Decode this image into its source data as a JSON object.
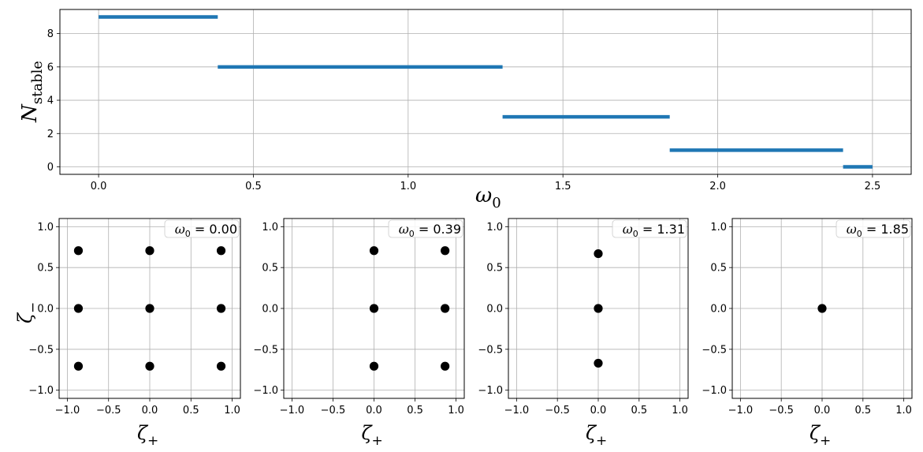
{
  "chart_data": [
    {
      "type": "line",
      "xlabel": "ω",
      "xlabel_sub": "0",
      "ylabel": "N",
      "ylabel_sub": "stable",
      "xlim": [
        -0.125,
        2.625
      ],
      "ylim": [
        -0.45,
        9.45
      ],
      "xticks": [
        0.0,
        0.5,
        1.0,
        1.5,
        2.0,
        2.5
      ],
      "xtick_labels": [
        "0.0",
        "0.5",
        "1.0",
        "1.5",
        "2.0",
        "2.5"
      ],
      "yticks": [
        0,
        2,
        4,
        6,
        8
      ],
      "ytick_labels": [
        "0",
        "2",
        "4",
        "6",
        "8"
      ],
      "grid": true,
      "color": "#1f77b4",
      "segments": [
        {
          "x0": 0.0,
          "x1": 0.385,
          "y": 9
        },
        {
          "x0": 0.385,
          "x1": 1.305,
          "y": 6
        },
        {
          "x0": 1.305,
          "x1": 1.845,
          "y": 3
        },
        {
          "x0": 1.845,
          "x1": 2.405,
          "y": 1
        },
        {
          "x0": 2.405,
          "x1": 2.5,
          "y": 0
        }
      ]
    },
    {
      "type": "scatter",
      "annotation": "ω",
      "annotation_sub": "0",
      "annotation_value": " = 0.00",
      "xlabel": "ζ",
      "xlabel_sub": "+",
      "ylabel": "ζ",
      "ylabel_sub": "−",
      "points": [
        {
          "x": -0.866,
          "y": 0.707
        },
        {
          "x": 0.0,
          "y": 0.707
        },
        {
          "x": 0.866,
          "y": 0.707
        },
        {
          "x": -0.866,
          "y": 0.0
        },
        {
          "x": 0.0,
          "y": 0.0
        },
        {
          "x": 0.866,
          "y": 0.0
        },
        {
          "x": -0.866,
          "y": -0.707
        },
        {
          "x": 0.0,
          "y": -0.707
        },
        {
          "x": 0.866,
          "y": -0.707
        }
      ]
    },
    {
      "type": "scatter",
      "annotation": "ω",
      "annotation_sub": "0",
      "annotation_value": " = 0.39",
      "xlabel": "ζ",
      "xlabel_sub": "+",
      "points": [
        {
          "x": 0.0,
          "y": 0.707
        },
        {
          "x": 0.866,
          "y": 0.707
        },
        {
          "x": 0.0,
          "y": 0.0
        },
        {
          "x": 0.866,
          "y": 0.0
        },
        {
          "x": 0.0,
          "y": -0.707
        },
        {
          "x": 0.866,
          "y": -0.707
        }
      ]
    },
    {
      "type": "scatter",
      "annotation": "ω",
      "annotation_sub": "0",
      "annotation_value": " = 1.31",
      "xlabel": "ζ",
      "xlabel_sub": "+",
      "points": [
        {
          "x": 0.0,
          "y": 0.67
        },
        {
          "x": 0.0,
          "y": 0.0
        },
        {
          "x": 0.0,
          "y": -0.67
        }
      ]
    },
    {
      "type": "scatter",
      "annotation": "ω",
      "annotation_sub": "0",
      "annotation_value": " = 1.85",
      "xlabel": "ζ",
      "xlabel_sub": "+",
      "points": [
        {
          "x": 0.0,
          "y": 0.0
        }
      ]
    }
  ],
  "small_axes": {
    "xlim": [
      -1.1,
      1.1
    ],
    "ylim": [
      -1.1,
      1.1
    ],
    "xticks": [
      -1.0,
      -0.5,
      0.0,
      0.5,
      1.0
    ],
    "xtick_labels": [
      "−1.0",
      "−0.5",
      "0.0",
      "0.5",
      "1.0"
    ],
    "yticks": [
      1.0,
      0.5,
      0.0,
      -0.5,
      -1.0
    ],
    "ytick_labels": [
      "1.0",
      "0.5",
      "0.0",
      "−0.5",
      "−1.0"
    ],
    "grid": true,
    "point_color": "#000000"
  }
}
